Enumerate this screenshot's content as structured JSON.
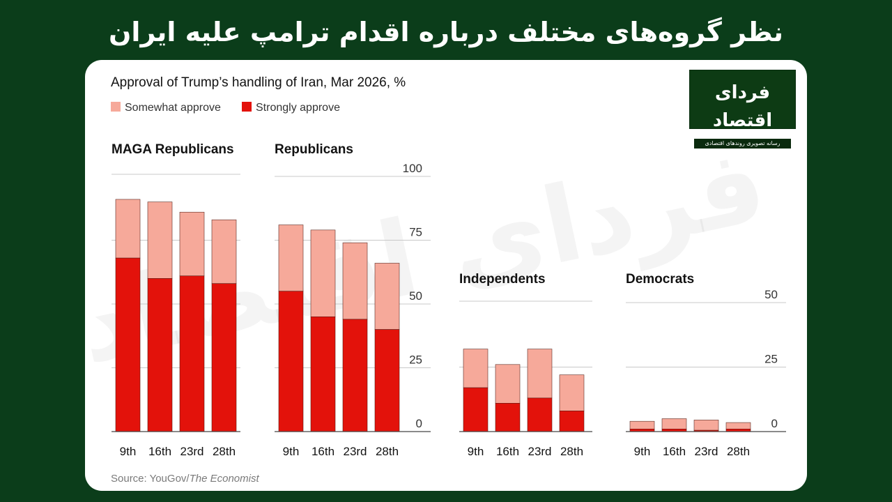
{
  "headline": "نظر گروه‌های مختلف درباره اقدام ترامپ علیه ایران",
  "logo": {
    "main": "فردای اقتصاد",
    "sub": "رسانه تصویری روندهای اقتصادی"
  },
  "watermark": "فردای اقتصاد",
  "colors": {
    "background": "#0b3d1a",
    "somewhat": "#f6a99a",
    "strongly": "#e3120b",
    "grid": "#c8c8c8",
    "text": "#121212",
    "muted": "#595959"
  },
  "chart_data": {
    "type": "bar",
    "stacked": true,
    "title": "Approval of Trump’s handling of Iran, Mar 2026, %",
    "legend": [
      {
        "name": "Somewhat approve",
        "color": "#f6a99a"
      },
      {
        "name": "Strongly approve",
        "color": "#e3120b"
      }
    ],
    "source_prefix": "Source: YouGov/",
    "source_italic": "The Economist",
    "categories": [
      "9th",
      "16th",
      "23rd",
      "28th"
    ],
    "panels": [
      {
        "name": "MAGA Republicans",
        "ylim": [
          0,
          100
        ],
        "yticks": [],
        "series": [
          {
            "name": "Strongly approve",
            "values": [
              68,
              60,
              61,
              58
            ]
          },
          {
            "name": "Somewhat approve",
            "values": [
              23,
              30,
              25,
              25
            ]
          }
        ]
      },
      {
        "name": "Republicans",
        "ylim": [
          0,
          100
        ],
        "yticks": [
          0,
          25,
          50,
          75,
          100
        ],
        "series": [
          {
            "name": "Strongly approve",
            "values": [
              55,
              45,
              44,
              40
            ]
          },
          {
            "name": "Somewhat approve",
            "values": [
              26,
              34,
              30,
              26
            ]
          }
        ]
      },
      {
        "name": "Independents",
        "ylim": [
          0,
          50
        ],
        "yticks": [],
        "series": [
          {
            "name": "Strongly approve",
            "values": [
              17,
              11,
              13,
              8
            ]
          },
          {
            "name": "Somewhat approve",
            "values": [
              15,
              15,
              19,
              14
            ]
          }
        ]
      },
      {
        "name": "Democrats",
        "ylim": [
          0,
          50
        ],
        "yticks": [
          0,
          25,
          50
        ],
        "series": [
          {
            "name": "Strongly approve",
            "values": [
              1,
              1,
              0.5,
              1
            ]
          },
          {
            "name": "Somewhat approve",
            "values": [
              3,
              4,
              4,
              2.5
            ]
          }
        ]
      }
    ]
  }
}
